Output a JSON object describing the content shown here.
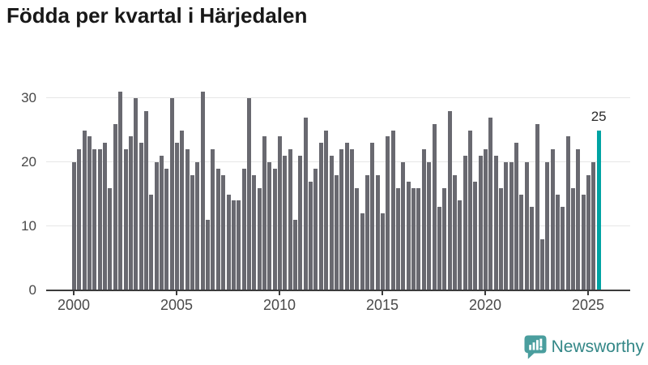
{
  "title": "Födda per kvartal i Härjedalen",
  "chart_data": {
    "type": "bar",
    "title": "Födda per kvartal i Härjedalen",
    "x": {
      "start": "2000 Q1",
      "end": "2025 Q3",
      "interval": "quarter",
      "start_year": 2000
    },
    "values": [
      20,
      22,
      25,
      24,
      22,
      22,
      23,
      16,
      26,
      31,
      22,
      24,
      30,
      23,
      28,
      15,
      20,
      21,
      19,
      30,
      23,
      25,
      22,
      18,
      20,
      31,
      11,
      22,
      19,
      18,
      15,
      14,
      14,
      19,
      30,
      18,
      16,
      24,
      20,
      19,
      24,
      21,
      22,
      11,
      21,
      27,
      17,
      19,
      23,
      25,
      21,
      18,
      22,
      23,
      22,
      16,
      12,
      18,
      23,
      18,
      12,
      24,
      25,
      16,
      20,
      17,
      16,
      16,
      22,
      20,
      26,
      13,
      16,
      28,
      18,
      14,
      21,
      25,
      17,
      21,
      22,
      27,
      21,
      16,
      20,
      20,
      23,
      15,
      20,
      13,
      26,
      8,
      20,
      22,
      15,
      13,
      24,
      16,
      22,
      15,
      18,
      20,
      25
    ],
    "highlight_index": 102,
    "annotation": {
      "text": "25",
      "quarter": "2025 Q3",
      "value": 25
    },
    "y_ticks": [
      0,
      10,
      20,
      30
    ],
    "y_tick_labels": [
      "0",
      "10",
      "20",
      "30"
    ],
    "x_tick_years": [
      2000,
      2005,
      2010,
      2015,
      2020,
      2025
    ],
    "x_tick_labels": [
      "2000",
      "2005",
      "2010",
      "2015",
      "2020",
      "2025"
    ],
    "ylim": [
      0,
      32
    ],
    "grid": "horizontal",
    "legend": "none",
    "bar_color": "#696970",
    "highlight_color": "#00a3a3"
  },
  "footer": {
    "brand": "Newsworthy",
    "icon": "newsworthy-speech-bubble-bar-chart-icon",
    "icon_color": "#4a9e9e",
    "text_color": "#338787"
  }
}
